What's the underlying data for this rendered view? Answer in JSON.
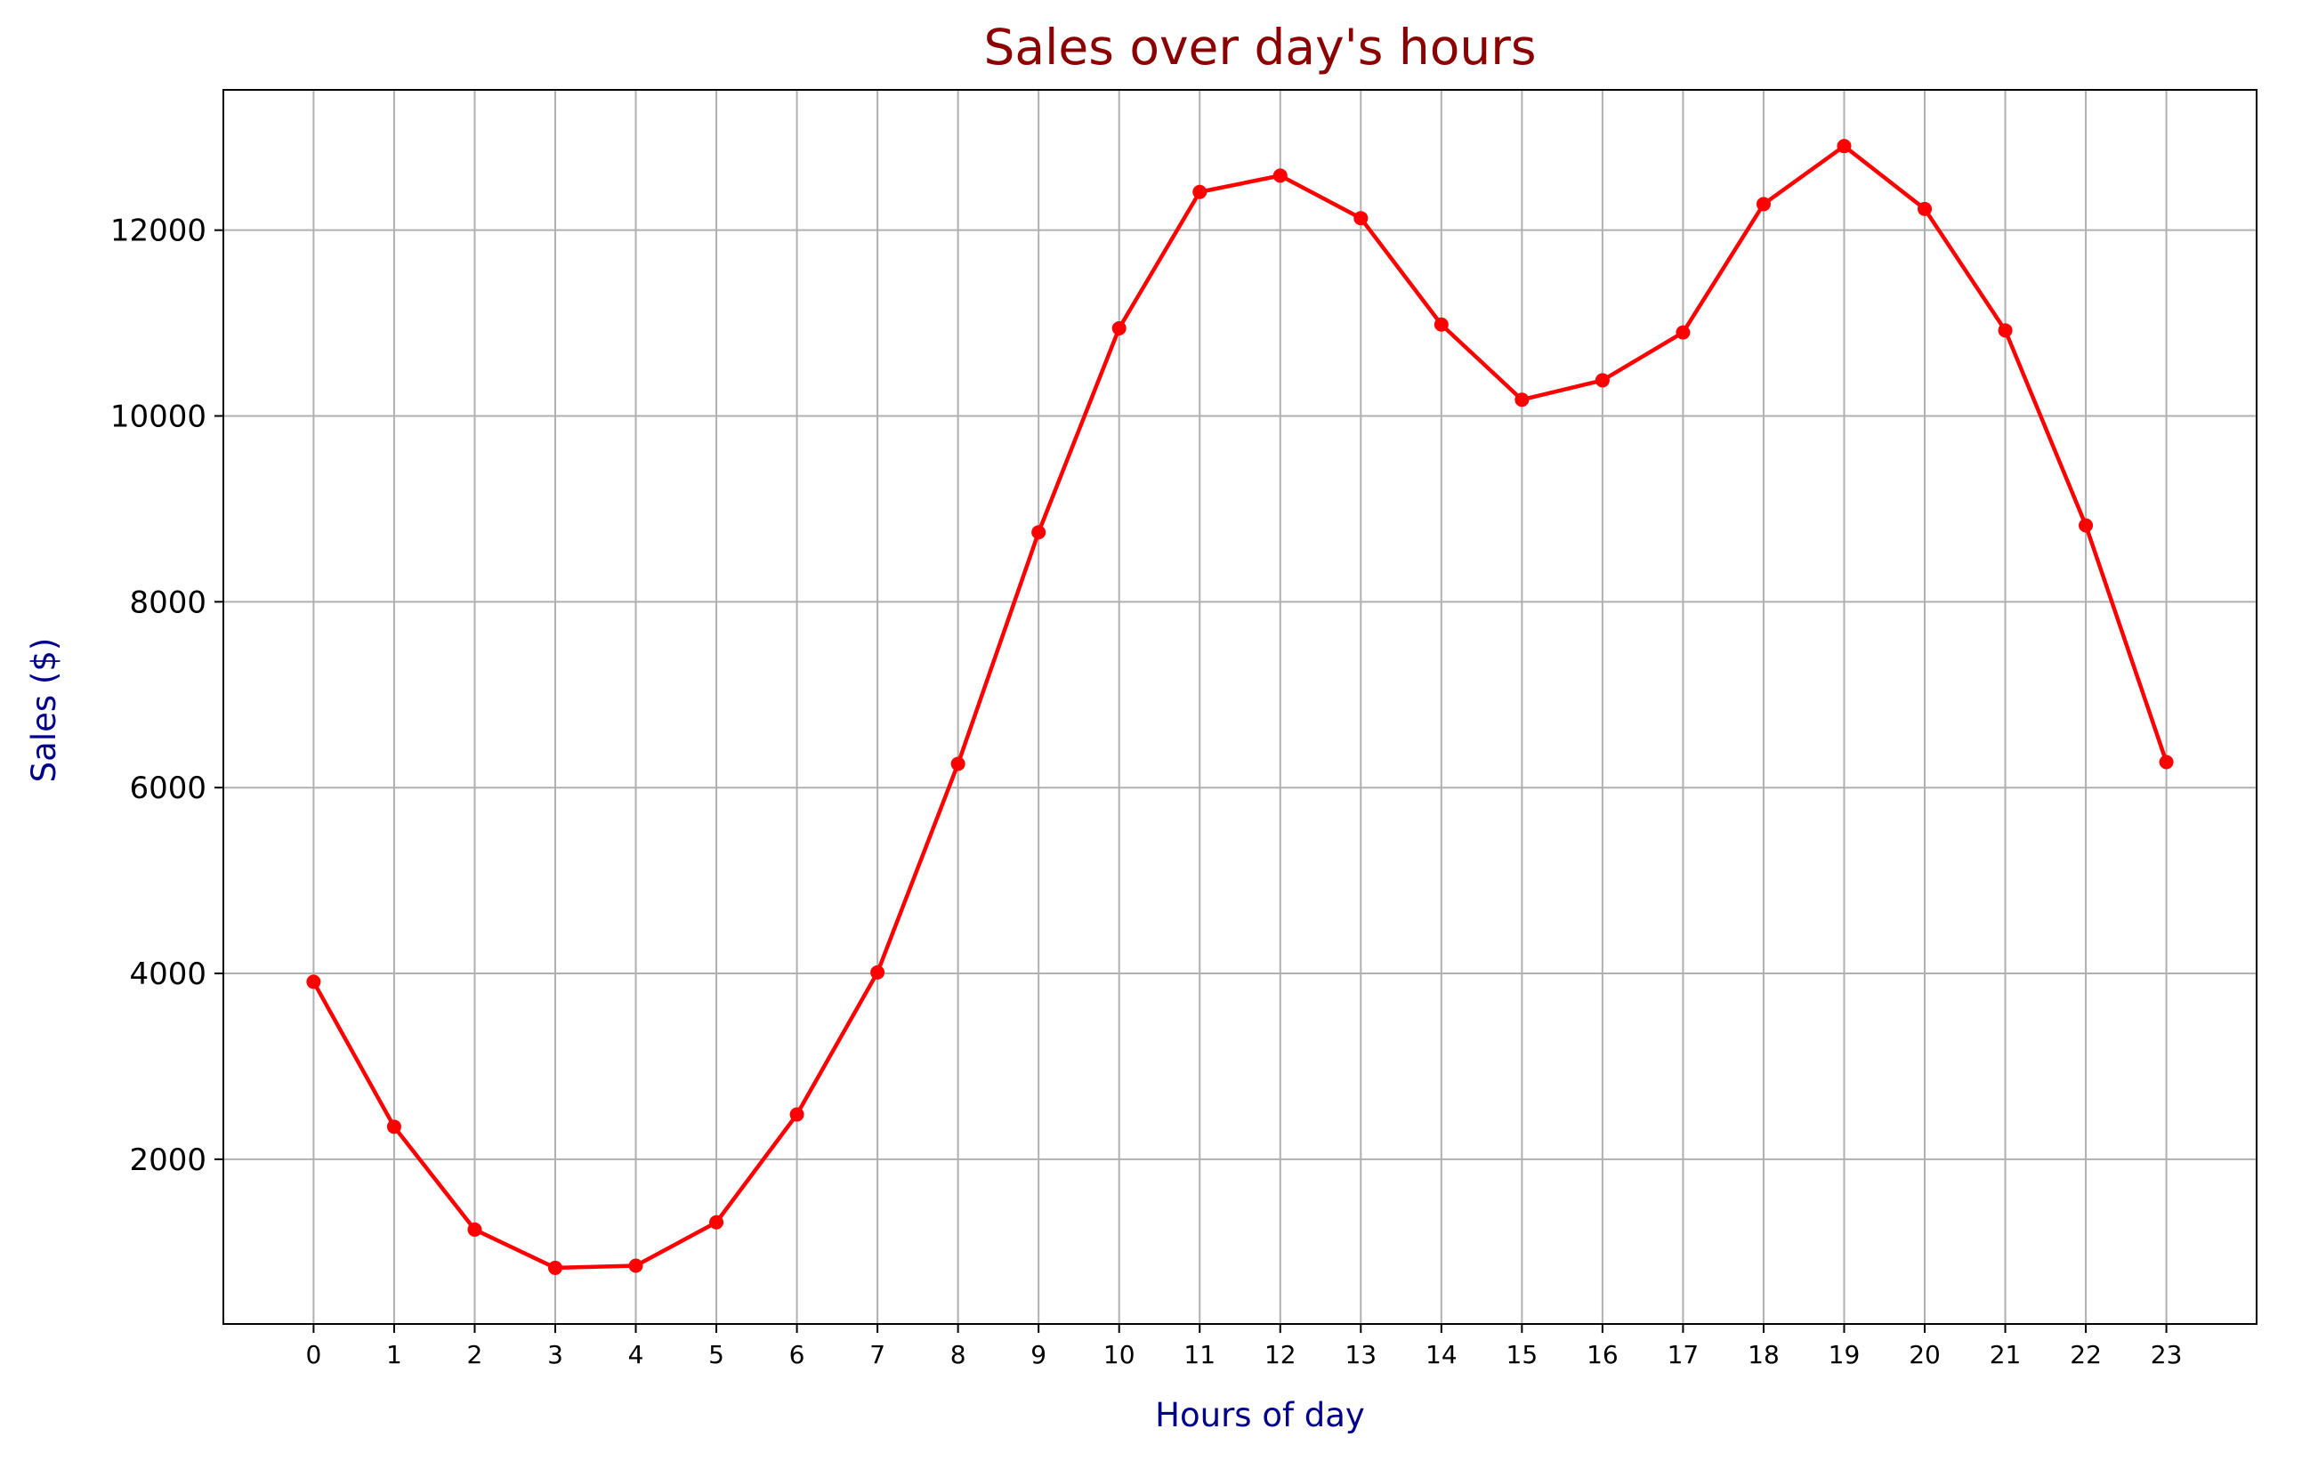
{
  "chart_data": {
    "type": "line",
    "title": "Sales over day's hours",
    "xlabel": "Hours of day",
    "ylabel": "Sales ($)",
    "x": [
      0,
      1,
      2,
      3,
      4,
      5,
      6,
      7,
      8,
      9,
      10,
      11,
      12,
      13,
      14,
      15,
      16,
      17,
      18,
      19,
      20,
      21,
      22,
      23
    ],
    "x_tick_labels": [
      "0",
      "1",
      "2",
      "3",
      "4",
      "5",
      "6",
      "7",
      "8",
      "9",
      "10",
      "11",
      "12",
      "13",
      "14",
      "15",
      "16",
      "17",
      "18",
      "19",
      "20",
      "21",
      "22",
      "23"
    ],
    "series": [
      {
        "values": [
          3910,
          2350,
          1243,
          831,
          854,
          1321,
          2482,
          4011,
          6256,
          8748,
          10944,
          12411,
          12587,
          12129,
          10984,
          10175,
          10384,
          10899,
          12280,
          12905,
          12228,
          10921,
          8822,
          6275
        ],
        "color": "#ff0000",
        "marker": "circle"
      }
    ],
    "y_ticks": [
      2000,
      4000,
      6000,
      8000,
      10000,
      12000
    ],
    "y_tick_labels": [
      "2000",
      "4000",
      "6000",
      "8000",
      "10000",
      "12000"
    ],
    "xlim": [
      -1.12,
      24.12
    ],
    "ylim": [
      227,
      13510
    ],
    "grid": true,
    "colors": {
      "title": "#8b0000",
      "axis_label": "#00008b",
      "grid": "#b0b0b0",
      "axes": "#000000"
    }
  }
}
